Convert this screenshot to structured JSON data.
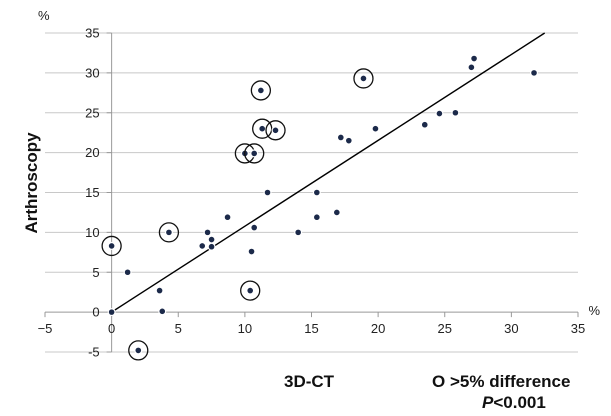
{
  "chart_data": {
    "type": "scatter",
    "ylabel": "Arthroscopy",
    "xlabel": "3D-CT",
    "x_unit": "%",
    "y_unit": "%",
    "xlim": [
      -5,
      35
    ],
    "ylim": [
      -5,
      35
    ],
    "x_ticks": [
      -5,
      0,
      5,
      10,
      15,
      20,
      25,
      30,
      35
    ],
    "y_ticks": [
      -5,
      0,
      5,
      10,
      15,
      20,
      25,
      30,
      35
    ],
    "grid": "horizontal",
    "legend": {
      "symbol": "O",
      "text": ">5% difference"
    },
    "p_label": "P",
    "p_text": "<0.001",
    "trendline": {
      "x": [
        0,
        32.5
      ],
      "y": [
        0,
        35
      ]
    },
    "points": [
      {
        "x": 0,
        "y": 0,
        "circled": false
      },
      {
        "x": 0,
        "y": 8.3,
        "circled": true
      },
      {
        "x": 1.2,
        "y": 5,
        "circled": false
      },
      {
        "x": 2,
        "y": -4.8,
        "circled": true
      },
      {
        "x": 3.6,
        "y": 2.7,
        "circled": false
      },
      {
        "x": 3.8,
        "y": 0.1,
        "circled": false
      },
      {
        "x": 4.3,
        "y": 10,
        "circled": true
      },
      {
        "x": 6.8,
        "y": 8.3,
        "circled": false
      },
      {
        "x": 7.2,
        "y": 10,
        "circled": false
      },
      {
        "x": 7.5,
        "y": 9.1,
        "circled": false
      },
      {
        "x": 7.5,
        "y": 8.2,
        "circled": false
      },
      {
        "x": 8.7,
        "y": 11.9,
        "circled": false
      },
      {
        "x": 10,
        "y": 19.9,
        "circled": true
      },
      {
        "x": 10.4,
        "y": 2.7,
        "circled": true
      },
      {
        "x": 10.5,
        "y": 7.6,
        "circled": false
      },
      {
        "x": 10.7,
        "y": 19.9,
        "circled": true
      },
      {
        "x": 10.7,
        "y": 10.6,
        "circled": false
      },
      {
        "x": 11.2,
        "y": 27.8,
        "circled": true
      },
      {
        "x": 11.3,
        "y": 23,
        "circled": true
      },
      {
        "x": 11.7,
        "y": 15,
        "circled": false
      },
      {
        "x": 12.3,
        "y": 22.8,
        "circled": true
      },
      {
        "x": 14,
        "y": 10,
        "circled": false
      },
      {
        "x": 15.4,
        "y": 15,
        "circled": false
      },
      {
        "x": 15.4,
        "y": 11.9,
        "circled": false
      },
      {
        "x": 16.9,
        "y": 12.5,
        "circled": false
      },
      {
        "x": 17.2,
        "y": 21.9,
        "circled": false
      },
      {
        "x": 17.8,
        "y": 21.5,
        "circled": false
      },
      {
        "x": 18.9,
        "y": 29.3,
        "circled": true
      },
      {
        "x": 19.8,
        "y": 23,
        "circled": false
      },
      {
        "x": 23.5,
        "y": 23.5,
        "circled": false
      },
      {
        "x": 24.6,
        "y": 24.9,
        "circled": false
      },
      {
        "x": 25.8,
        "y": 25,
        "circled": false
      },
      {
        "x": 27,
        "y": 30.7,
        "circled": false
      },
      {
        "x": 27.2,
        "y": 31.8,
        "circled": false
      },
      {
        "x": 31.7,
        "y": 30,
        "circled": false
      }
    ]
  }
}
